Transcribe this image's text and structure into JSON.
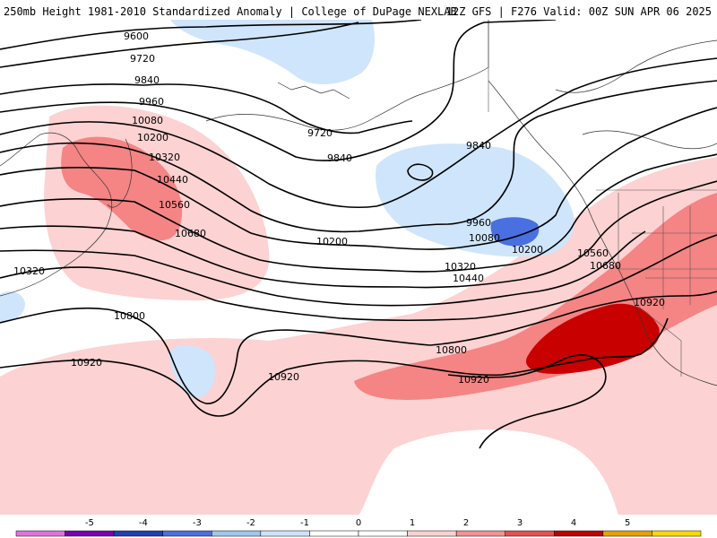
{
  "header": {
    "title_left": "250mb Height 1981-2010 Standardized Anomaly | College of DuPage NEXLAB",
    "title_right": "12Z GFS | F276 Valid: 00Z SUN APR 06 2025"
  },
  "contour_labels": [
    {
      "id": "9600",
      "text": "9600"
    },
    {
      "id": "9720a",
      "text": "9720"
    },
    {
      "id": "9840a",
      "text": "9840"
    },
    {
      "id": "9960a",
      "text": "9960"
    },
    {
      "id": "10080a",
      "text": "10080"
    },
    {
      "id": "10200a",
      "text": "10200"
    },
    {
      "id": "10320a",
      "text": "10320"
    },
    {
      "id": "10440a",
      "text": "10440"
    },
    {
      "id": "10560a",
      "text": "10560"
    },
    {
      "id": "10680a",
      "text": "10680"
    },
    {
      "id": "9720b",
      "text": "9720"
    },
    {
      "id": "9840b",
      "text": "9840"
    },
    {
      "id": "9840c",
      "text": "9840"
    },
    {
      "id": "9960b",
      "text": "9960"
    },
    {
      "id": "10080b",
      "text": "10080"
    },
    {
      "id": "10200b",
      "text": "10200"
    },
    {
      "id": "10200c",
      "text": "10200"
    },
    {
      "id": "10320b",
      "text": "10320"
    },
    {
      "id": "10440b",
      "text": "10440"
    },
    {
      "id": "10560b",
      "text": "10560"
    },
    {
      "id": "10680b",
      "text": "10680"
    },
    {
      "id": "10320c",
      "text": "10320"
    },
    {
      "id": "10800a",
      "text": "10800"
    },
    {
      "id": "10920a",
      "text": "10920"
    },
    {
      "id": "10920b",
      "text": "10920"
    },
    {
      "id": "10800b",
      "text": "10800"
    },
    {
      "id": "10920c",
      "text": "10920"
    },
    {
      "id": "10920d",
      "text": "10920"
    }
  ],
  "colorbar": {
    "ticks": [
      "-5",
      "-4",
      "-3",
      "-2",
      "-1",
      "0",
      "1",
      "2",
      "3",
      "4",
      "5"
    ],
    "colors": [
      "#e070e0",
      "#7a00b0",
      "#1f3fb8",
      "#4a6fe0",
      "#9ec6f2",
      "#cde3fa",
      "#ffffff",
      "#ffffff",
      "#fcd0d0",
      "#f59090",
      "#e85050",
      "#c00000",
      "#e8a000",
      "#ffd700"
    ]
  },
  "colors": {
    "neg1": "#cfe5fb",
    "neg2": "#4a6fe0",
    "pos1": "#fcd2d2",
    "pos2": "#f58484",
    "pos3": "#c80000"
  }
}
